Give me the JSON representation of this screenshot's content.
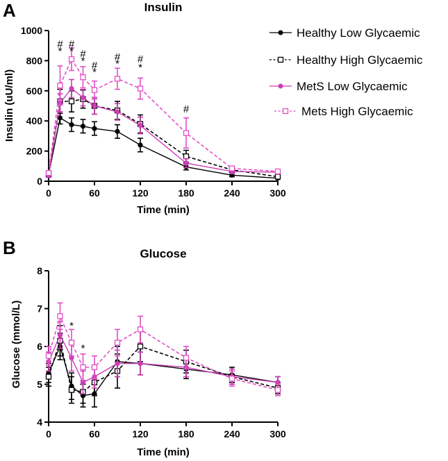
{
  "chart_data": [
    {
      "type": "line",
      "panel": "A",
      "title": "Insulin",
      "xlabel": "Time (min)",
      "ylabel": "Insulin (uU/ml)",
      "xlim": [
        0,
        300
      ],
      "ylim": [
        0,
        1000
      ],
      "xticks": [
        0,
        60,
        120,
        180,
        240,
        300
      ],
      "yticks": [
        0,
        200,
        400,
        600,
        800,
        1000
      ],
      "legend_position": "top-right",
      "series": [
        {
          "name": "Healthy Low Glycaemic",
          "color": "#000000",
          "dashed": false,
          "marker": "filled-circle",
          "x": [
            0,
            15,
            30,
            45,
            60,
            90,
            120,
            180,
            240,
            300
          ],
          "y": [
            45,
            420,
            375,
            365,
            350,
            330,
            240,
            95,
            40,
            20
          ],
          "err": [
            15,
            40,
            45,
            45,
            45,
            45,
            45,
            20,
            10,
            5
          ]
        },
        {
          "name": "Healthy High Glycaemic",
          "color": "#000000",
          "dashed": true,
          "marker": "open-square",
          "x": [
            0,
            15,
            30,
            45,
            60,
            90,
            120,
            180,
            240,
            300
          ],
          "y": [
            50,
            530,
            530,
            545,
            500,
            470,
            380,
            165,
            75,
            30
          ],
          "err": [
            15,
            80,
            70,
            60,
            55,
            60,
            60,
            40,
            15,
            8
          ]
        },
        {
          "name": "MetS Low Glycaemic",
          "color": "#cc3fb7",
          "dashed": false,
          "marker": "filled-circle",
          "x": [
            0,
            15,
            30,
            45,
            60,
            90,
            120,
            180,
            240,
            300
          ],
          "y": [
            40,
            520,
            615,
            555,
            500,
            460,
            370,
            120,
            65,
            60
          ],
          "err": [
            15,
            60,
            60,
            55,
            55,
            55,
            55,
            30,
            15,
            10
          ]
        },
        {
          "name": "Mets High Glycaemic",
          "color": "#e24fc8",
          "dashed": true,
          "marker": "open-square",
          "x": [
            0,
            15,
            30,
            45,
            60,
            90,
            120,
            180,
            240,
            300
          ],
          "y": [
            55,
            635,
            810,
            690,
            605,
            680,
            615,
            320,
            85,
            65
          ],
          "err": [
            15,
            130,
            75,
            70,
            60,
            70,
            70,
            100,
            15,
            10
          ]
        }
      ],
      "annotations": [
        {
          "x": 15,
          "y": 910,
          "text": "#"
        },
        {
          "x": 15,
          "y": 865,
          "text": "*"
        },
        {
          "x": 30,
          "y": 910,
          "text": "#"
        },
        {
          "x": 30,
          "y": 865,
          "text": "*"
        },
        {
          "x": 45,
          "y": 845,
          "text": "#"
        },
        {
          "x": 45,
          "y": 800,
          "text": "*"
        },
        {
          "x": 60,
          "y": 770,
          "text": "#"
        },
        {
          "x": 60,
          "y": 725,
          "text": "*"
        },
        {
          "x": 90,
          "y": 825,
          "text": "#"
        },
        {
          "x": 90,
          "y": 780,
          "text": "*"
        },
        {
          "x": 120,
          "y": 810,
          "text": "#"
        },
        {
          "x": 120,
          "y": 755,
          "text": "*"
        },
        {
          "x": 180,
          "y": 480,
          "text": "#"
        }
      ]
    },
    {
      "type": "line",
      "panel": "B",
      "title": "Glucose",
      "xlabel": "Time (min)",
      "ylabel": "Glucose  (mmol/L)",
      "xlim": [
        0,
        300
      ],
      "ylim": [
        4,
        8
      ],
      "xticks": [
        0,
        60,
        120,
        180,
        240,
        300
      ],
      "yticks": [
        4,
        5,
        6,
        7,
        8
      ],
      "series": [
        {
          "name": "Healthy Low Glycaemic",
          "color": "#000000",
          "dashed": false,
          "marker": "filled-circle",
          "x": [
            0,
            15,
            30,
            45,
            60,
            90,
            120,
            180,
            240,
            300
          ],
          "y": [
            5.3,
            6.0,
            4.95,
            4.7,
            4.75,
            5.6,
            5.55,
            5.4,
            5.25,
            5.05
          ],
          "err": [
            0.25,
            0.35,
            0.35,
            0.3,
            0.35,
            0.4,
            0.3,
            0.25,
            0.2,
            0.15
          ]
        },
        {
          "name": "Healthy High Glycaemic",
          "color": "#000000",
          "dashed": true,
          "marker": "open-square",
          "x": [
            0,
            15,
            30,
            45,
            60,
            90,
            120,
            180,
            240,
            300
          ],
          "y": [
            5.2,
            6.15,
            4.85,
            4.8,
            5.05,
            5.35,
            6.0,
            5.6,
            5.2,
            4.9
          ],
          "err": [
            0.25,
            0.4,
            0.35,
            0.3,
            0.35,
            0.45,
            0.4,
            0.3,
            0.2,
            0.15
          ]
        },
        {
          "name": "MetS Low Glycaemic",
          "color": "#cc3fb7",
          "dashed": false,
          "marker": "filled-circle",
          "x": [
            0,
            15,
            30,
            45,
            60,
            90,
            120,
            180,
            240,
            300
          ],
          "y": [
            5.6,
            6.3,
            5.7,
            5.05,
            5.2,
            5.55,
            5.55,
            5.45,
            5.2,
            5.05
          ],
          "err": [
            0.25,
            0.35,
            0.35,
            0.3,
            0.3,
            0.35,
            0.3,
            0.25,
            0.2,
            0.15
          ]
        },
        {
          "name": "Mets High Glycaemic",
          "color": "#e24fc8",
          "dashed": true,
          "marker": "open-square",
          "x": [
            0,
            15,
            30,
            45,
            60,
            90,
            120,
            180,
            240,
            300
          ],
          "y": [
            5.75,
            6.8,
            6.1,
            5.45,
            5.45,
            6.1,
            6.45,
            5.7,
            5.15,
            4.85
          ],
          "err": [
            0.25,
            0.35,
            0.35,
            0.35,
            0.3,
            0.35,
            0.35,
            0.3,
            0.2,
            0.15
          ]
        }
      ],
      "annotations": [
        {
          "x": 30,
          "y": 6.55,
          "text": "*"
        },
        {
          "x": 45,
          "y": 5.95,
          "text": "*"
        }
      ]
    }
  ]
}
